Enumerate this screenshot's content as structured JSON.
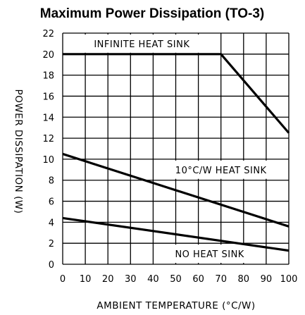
{
  "chart_data": {
    "type": "line",
    "title": "Maximum Power Dissipation (TO-3)",
    "xlabel": "AMBIENT TEMPERATURE (°C/W)",
    "ylabel": "POWER DISSIPATION (W)",
    "xlim": [
      0,
      100
    ],
    "ylim": [
      0,
      22
    ],
    "x_ticks": [
      "0",
      "10",
      "20",
      "30",
      "40",
      "50",
      "60",
      "70",
      "80",
      "90",
      "100"
    ],
    "y_ticks": [
      "0",
      "2",
      "4",
      "6",
      "8",
      "10",
      "12",
      "14",
      "16",
      "18",
      "20",
      "22"
    ],
    "grid": true,
    "series": [
      {
        "name": "INFINITE HEAT SINK",
        "x": [
          0,
          70,
          100
        ],
        "y": [
          20,
          20,
          12.5
        ]
      },
      {
        "name": "10°C/W HEAT SINK",
        "x": [
          0,
          100
        ],
        "y": [
          10.5,
          3.6
        ]
      },
      {
        "name": "NO HEAT SINK",
        "x": [
          0,
          100
        ],
        "y": [
          4.4,
          1.3
        ]
      }
    ]
  }
}
